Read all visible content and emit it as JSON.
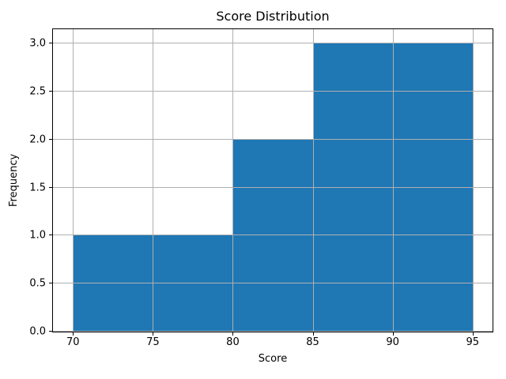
{
  "chart_data": {
    "type": "bar",
    "subtype": "histogram",
    "title": "Score Distribution",
    "xlabel": "Score",
    "ylabel": "Frequency",
    "bin_edges": [
      70,
      75,
      80,
      85,
      90,
      95
    ],
    "counts": [
      1,
      1,
      2,
      3,
      3
    ],
    "xlim": [
      68.75,
      96.25
    ],
    "ylim": [
      0,
      3.15
    ],
    "xticks": [
      70,
      75,
      80,
      85,
      90,
      95
    ],
    "xtick_labels": [
      "70",
      "75",
      "80",
      "85",
      "90",
      "95"
    ],
    "yticks": [
      0,
      0.5,
      1,
      1.5,
      2,
      2.5,
      3
    ],
    "ytick_labels": [
      "0.0",
      "0.5",
      "1.0",
      "1.5",
      "2.0",
      "2.5",
      "3.0"
    ],
    "grid": true,
    "grid_on_top_of_bars": true,
    "legend": null,
    "colors": {
      "bar": "#1f77b4",
      "grid": "#b0b0b0",
      "spine": "#000000",
      "text": "#000000",
      "background": "#ffffff"
    }
  }
}
